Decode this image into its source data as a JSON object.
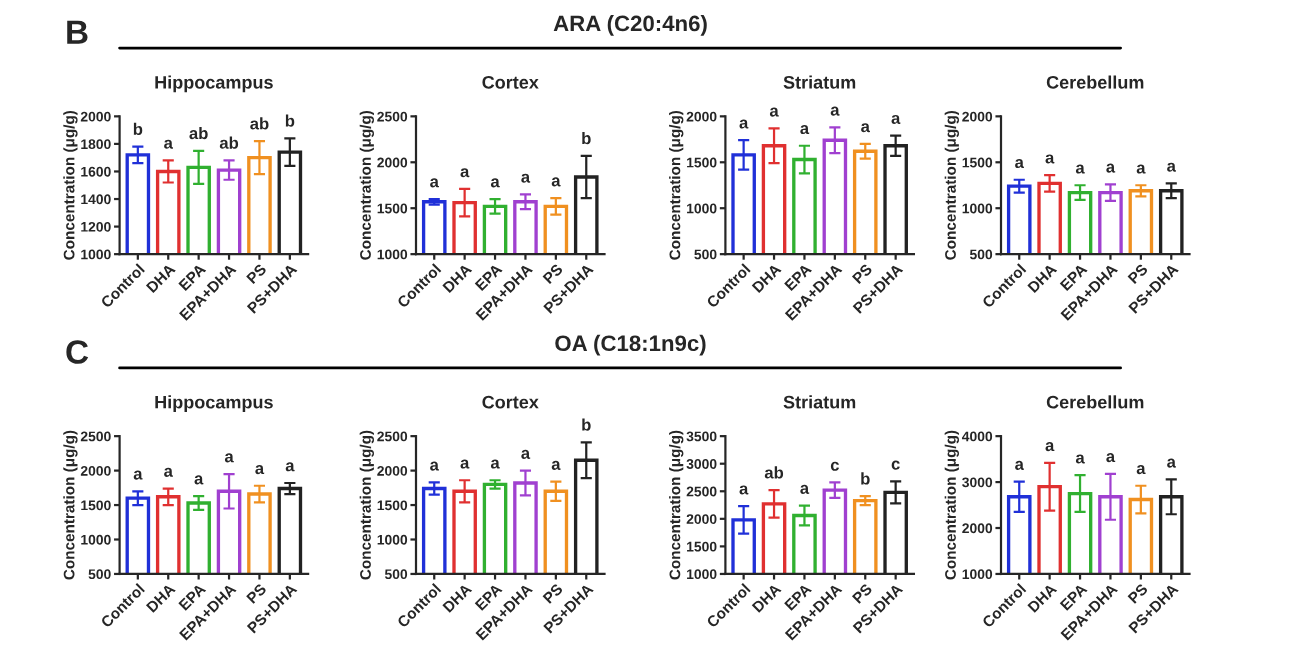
{
  "chart_data": [
    {
      "type": "bar",
      "title": "Hippocampus",
      "ylabel": "Concentration (μg/g)",
      "annotations": [
        "B",
        "ARA (C20:4n6)"
      ],
      "categories": [
        "Control",
        "DHA",
        "EPA",
        "EPA+DHA",
        "PS",
        "PS+DHA"
      ],
      "values": [
        1720,
        1600,
        1630,
        1610,
        1700,
        1740
      ],
      "errors": [
        60,
        80,
        120,
        70,
        120,
        100
      ],
      "value_labels": [
        "b",
        "a",
        "ab",
        "ab",
        "ab",
        "b"
      ],
      "colors": [
        "#2030d8",
        "#e03030",
        "#30b030",
        "#a040d0",
        "#f09020",
        "#222222"
      ],
      "ylim": [
        1000,
        2000
      ],
      "yticks": [
        1000,
        1200,
        1400,
        1600,
        1800,
        2000
      ]
    },
    {
      "type": "bar",
      "title": "Cortex",
      "ylabel": "Concentration (μg/g)",
      "categories": [
        "Control",
        "DHA",
        "EPA",
        "EPA+DHA",
        "PS",
        "PS+DHA"
      ],
      "values": [
        1570,
        1560,
        1520,
        1570,
        1520,
        1840
      ],
      "errors": [
        30,
        150,
        80,
        80,
        90,
        230
      ],
      "value_labels": [
        "a",
        "a",
        "a",
        "a",
        "a",
        "b"
      ],
      "colors": [
        "#2030d8",
        "#e03030",
        "#30b030",
        "#a040d0",
        "#f09020",
        "#222222"
      ],
      "ylim": [
        1000,
        2500
      ],
      "yticks": [
        1000,
        1500,
        2000,
        2500
      ]
    },
    {
      "type": "bar",
      "title": "Striatum",
      "ylabel": "Concentration (μg/g)",
      "categories": [
        "Control",
        "DHA",
        "EPA",
        "EPA+DHA",
        "PS",
        "PS+DHA"
      ],
      "values": [
        1580,
        1680,
        1530,
        1740,
        1620,
        1680
      ],
      "errors": [
        160,
        190,
        150,
        140,
        80,
        110
      ],
      "value_labels": [
        "a",
        "a",
        "a",
        "a",
        "a",
        "a"
      ],
      "colors": [
        "#2030d8",
        "#e03030",
        "#30b030",
        "#a040d0",
        "#f09020",
        "#222222"
      ],
      "ylim": [
        500,
        2000
      ],
      "yticks": [
        500,
        1000,
        1500,
        2000
      ]
    },
    {
      "type": "bar",
      "title": "Cerebellum",
      "ylabel": "Concentration (μg/g)",
      "categories": [
        "Control",
        "DHA",
        "EPA",
        "EPA+DHA",
        "PS",
        "PS+DHA"
      ],
      "values": [
        1240,
        1270,
        1170,
        1170,
        1190,
        1190
      ],
      "errors": [
        70,
        90,
        80,
        90,
        60,
        80
      ],
      "value_labels": [
        "a",
        "a",
        "a",
        "a",
        "a",
        "a"
      ],
      "colors": [
        "#2030d8",
        "#e03030",
        "#30b030",
        "#a040d0",
        "#f09020",
        "#222222"
      ],
      "ylim": [
        500,
        2000
      ],
      "yticks": [
        500,
        1000,
        1500,
        2000
      ]
    },
    {
      "type": "bar",
      "title": "Hippocampus",
      "ylabel": "Concentration (μg/g)",
      "annotations": [
        "C",
        "OA (C18:1n9c)"
      ],
      "categories": [
        "Control",
        "DHA",
        "EPA",
        "EPA+DHA",
        "PS",
        "PS+DHA"
      ],
      "values": [
        1600,
        1620,
        1530,
        1700,
        1660,
        1740
      ],
      "errors": [
        100,
        120,
        100,
        250,
        120,
        80
      ],
      "value_labels": [
        "a",
        "a",
        "a",
        "a",
        "a",
        "a"
      ],
      "colors": [
        "#2030d8",
        "#e03030",
        "#30b030",
        "#a040d0",
        "#f09020",
        "#222222"
      ],
      "ylim": [
        500,
        2500
      ],
      "yticks": [
        500,
        1000,
        1500,
        2000,
        2500
      ]
    },
    {
      "type": "bar",
      "title": "Cortex",
      "ylabel": "Concentration (μg/g)",
      "categories": [
        "Control",
        "DHA",
        "EPA",
        "EPA+DHA",
        "PS",
        "PS+DHA"
      ],
      "values": [
        1740,
        1700,
        1800,
        1820,
        1700,
        2150
      ],
      "errors": [
        90,
        160,
        60,
        180,
        140,
        260
      ],
      "value_labels": [
        "a",
        "a",
        "a",
        "a",
        "a",
        "b"
      ],
      "colors": [
        "#2030d8",
        "#e03030",
        "#30b030",
        "#a040d0",
        "#f09020",
        "#222222"
      ],
      "ylim": [
        500,
        2500
      ],
      "yticks": [
        500,
        1000,
        1500,
        2000,
        2500
      ]
    },
    {
      "type": "bar",
      "title": "Striatum",
      "ylabel": "Concentration (μg/g)",
      "categories": [
        "Control",
        "DHA",
        "EPA",
        "EPA+DHA",
        "PS",
        "PS+DHA"
      ],
      "values": [
        1980,
        2270,
        2060,
        2520,
        2330,
        2480
      ],
      "errors": [
        250,
        250,
        180,
        140,
        80,
        200
      ],
      "value_labels": [
        "a",
        "ab",
        "a",
        "c",
        "b",
        "c"
      ],
      "colors": [
        "#2030d8",
        "#e03030",
        "#30b030",
        "#a040d0",
        "#f09020",
        "#222222"
      ],
      "ylim": [
        1000,
        3500
      ],
      "yticks": [
        1000,
        1500,
        2000,
        2500,
        3000,
        3500
      ]
    },
    {
      "type": "bar",
      "title": "Cerebellum",
      "ylabel": "Concentration (μg/g)",
      "categories": [
        "Control",
        "DHA",
        "EPA",
        "EPA+DHA",
        "PS",
        "PS+DHA"
      ],
      "values": [
        2680,
        2900,
        2750,
        2680,
        2620,
        2680
      ],
      "errors": [
        330,
        520,
        400,
        500,
        300,
        380
      ],
      "value_labels": [
        "a",
        "a",
        "a",
        "a",
        "a",
        "a"
      ],
      "colors": [
        "#2030d8",
        "#e03030",
        "#30b030",
        "#a040d0",
        "#f09020",
        "#222222"
      ],
      "ylim": [
        1000,
        4000
      ],
      "yticks": [
        1000,
        2000,
        3000,
        4000
      ]
    }
  ]
}
